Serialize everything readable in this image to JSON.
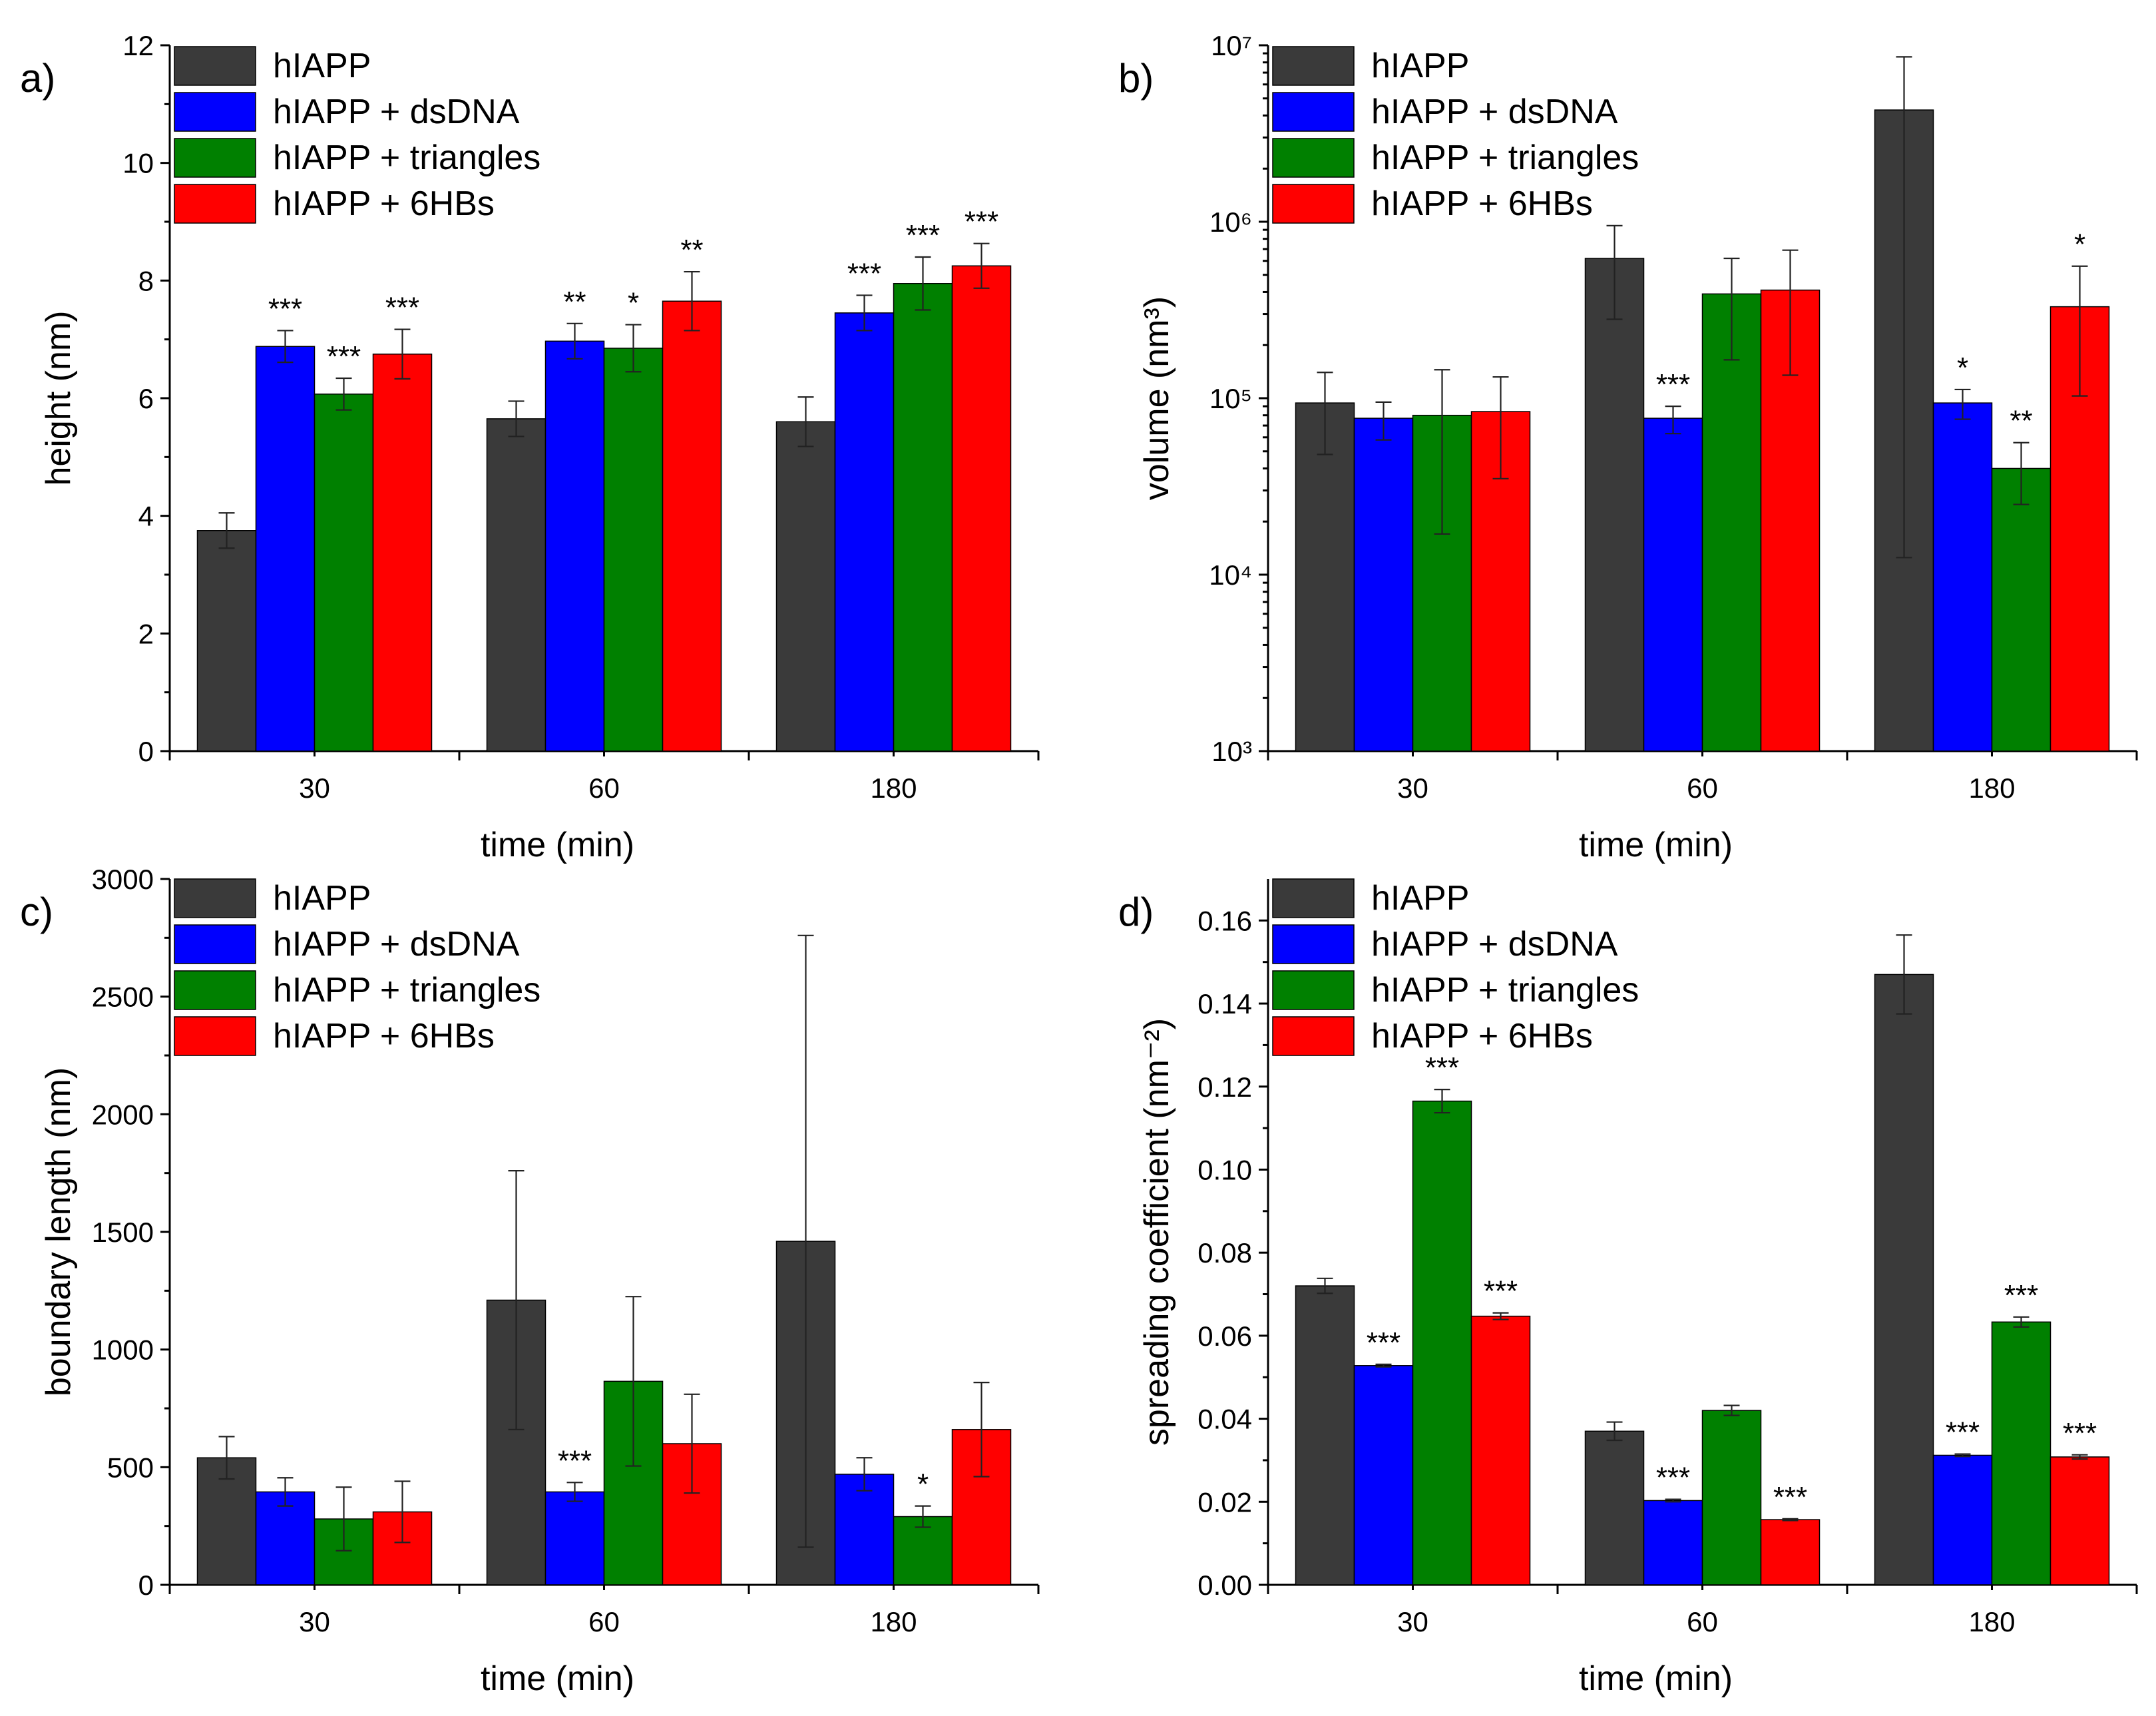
{
  "chart_data": [
    {
      "panel": "a)",
      "type": "bar",
      "ylabel": "height (nm)",
      "xlabel": "time (min)",
      "yscale": "linear",
      "ylim": [
        0,
        12
      ],
      "yticks": [
        0,
        2,
        4,
        6,
        8,
        10,
        12
      ],
      "ytick_labels": [
        "0",
        "2",
        "4",
        "6",
        "8",
        "10",
        "12"
      ],
      "categories": [
        "30",
        "60",
        "180"
      ],
      "legend_position": "top-left",
      "series": [
        {
          "name": "hIAPP",
          "color": "#3a3a3a",
          "values": [
            3.75,
            5.65,
            5.6
          ],
          "errors": [
            0.3,
            0.3,
            0.42
          ],
          "sig": [
            "",
            "",
            ""
          ]
        },
        {
          "name": "hIAPP + dsDNA",
          "color": "#0000ff",
          "values": [
            6.88,
            6.97,
            7.45
          ],
          "errors": [
            0.27,
            0.3,
            0.3
          ],
          "sig": [
            "***",
            "**",
            "***"
          ]
        },
        {
          "name": "hIAPP + triangles",
          "color": "#008000",
          "values": [
            6.07,
            6.85,
            7.95
          ],
          "errors": [
            0.27,
            0.4,
            0.45
          ],
          "sig": [
            "***",
            "*",
            "***"
          ]
        },
        {
          "name": "hIAPP + 6HBs",
          "color": "#ff0000",
          "values": [
            6.75,
            7.65,
            8.25
          ],
          "errors": [
            0.42,
            0.5,
            0.38
          ],
          "sig": [
            "***",
            "**",
            "***"
          ]
        }
      ]
    },
    {
      "panel": "b)",
      "type": "bar",
      "ylabel": "volume (nm³)",
      "xlabel": "time (min)",
      "yscale": "log",
      "ylim": [
        1000,
        10000000
      ],
      "yticks": [
        1000,
        10000,
        100000,
        1000000,
        10000000
      ],
      "ytick_labels": [
        "10³",
        "10⁴",
        "10⁵",
        "10⁶",
        "10⁷"
      ],
      "categories": [
        "30",
        "60",
        "180"
      ],
      "legend_position": "top-left",
      "series": [
        {
          "name": "hIAPP",
          "color": "#3a3a3a",
          "values": [
            94000,
            620000,
            4300000
          ],
          "err_low": [
            48000,
            280000,
            12500
          ],
          "err_high": [
            140000,
            950000,
            8600000
          ],
          "sig": [
            "",
            "",
            ""
          ]
        },
        {
          "name": "hIAPP + dsDNA",
          "color": "#0000ff",
          "values": [
            77000,
            77000,
            94000
          ],
          "err_low": [
            58000,
            63000,
            76000
          ],
          "err_high": [
            95000,
            90000,
            112000
          ],
          "sig": [
            "",
            "***",
            "*"
          ]
        },
        {
          "name": "hIAPP + triangles",
          "color": "#008000",
          "values": [
            80000,
            390000,
            40000
          ],
          "err_low": [
            17000,
            165000,
            25000
          ],
          "err_high": [
            145000,
            620000,
            56000
          ],
          "sig": [
            "",
            "",
            "**"
          ]
        },
        {
          "name": "hIAPP + 6HBs",
          "color": "#ff0000",
          "values": [
            84000,
            410000,
            330000
          ],
          "err_low": [
            35000,
            135000,
            103000
          ],
          "err_high": [
            132000,
            690000,
            560000
          ],
          "sig": [
            "",
            "",
            "*"
          ]
        }
      ]
    },
    {
      "panel": "c)",
      "type": "bar",
      "ylabel": "boundary length (nm)",
      "xlabel": "time (min)",
      "yscale": "linear",
      "ylim": [
        0,
        3000
      ],
      "yticks": [
        0,
        500,
        1000,
        1500,
        2000,
        2500,
        3000
      ],
      "ytick_labels": [
        "0",
        "500",
        "1000",
        "1500",
        "2000",
        "2500",
        "3000"
      ],
      "categories": [
        "30",
        "60",
        "180"
      ],
      "legend_position": "top-left",
      "series": [
        {
          "name": "hIAPP",
          "color": "#3a3a3a",
          "values": [
            540,
            1210,
            1460
          ],
          "errors": [
            90,
            550,
            1300
          ],
          "sig": [
            "",
            "",
            ""
          ]
        },
        {
          "name": "hIAPP + dsDNA",
          "color": "#0000ff",
          "values": [
            395,
            395,
            470
          ],
          "errors": [
            60,
            40,
            70
          ],
          "sig": [
            "",
            "***",
            ""
          ]
        },
        {
          "name": "hIAPP + triangles",
          "color": "#008000",
          "values": [
            280,
            865,
            290
          ],
          "errors": [
            135,
            360,
            45
          ],
          "sig": [
            "",
            "",
            "*"
          ]
        },
        {
          "name": "hIAPP + 6HBs",
          "color": "#ff0000",
          "values": [
            310,
            600,
            660
          ],
          "errors": [
            130,
            210,
            200
          ],
          "sig": [
            "",
            "",
            ""
          ]
        }
      ]
    },
    {
      "panel": "d)",
      "type": "bar",
      "ylabel": "spreading coefficient (nm⁻²)",
      "xlabel": "time (min)",
      "yscale": "linear",
      "ylim": [
        0,
        0.17
      ],
      "yticks": [
        0,
        0.02,
        0.04,
        0.06,
        0.08,
        0.1,
        0.12,
        0.14,
        0.16
      ],
      "ytick_labels": [
        "0.00",
        "0.02",
        "0.04",
        "0.06",
        "0.08",
        "0.10",
        "0.12",
        "0.14",
        "0.16"
      ],
      "categories": [
        "30",
        "60",
        "180"
      ],
      "legend_position": "top-left",
      "series": [
        {
          "name": "hIAPP",
          "color": "#3a3a3a",
          "values": [
            0.072,
            0.037,
            0.147
          ],
          "errors": [
            0.0018,
            0.0022,
            0.0095
          ],
          "sig": [
            "",
            "",
            ""
          ]
        },
        {
          "name": "hIAPP + dsDNA",
          "color": "#0000ff",
          "values": [
            0.0528,
            0.0203,
            0.0312
          ],
          "errors": [
            0.0003,
            0.0003,
            0.0003
          ],
          "sig": [
            "***",
            "***",
            "***"
          ]
        },
        {
          "name": "hIAPP + triangles",
          "color": "#008000",
          "values": [
            0.1165,
            0.042,
            0.0633
          ],
          "errors": [
            0.0028,
            0.0012,
            0.0012
          ],
          "sig": [
            "***",
            "",
            "***"
          ]
        },
        {
          "name": "hIAPP + 6HBs",
          "color": "#ff0000",
          "values": [
            0.0647,
            0.0157,
            0.0308
          ],
          "errors": [
            0.0008,
            0.0002,
            0.0005
          ],
          "sig": [
            "***",
            "***",
            "***"
          ]
        }
      ]
    }
  ]
}
